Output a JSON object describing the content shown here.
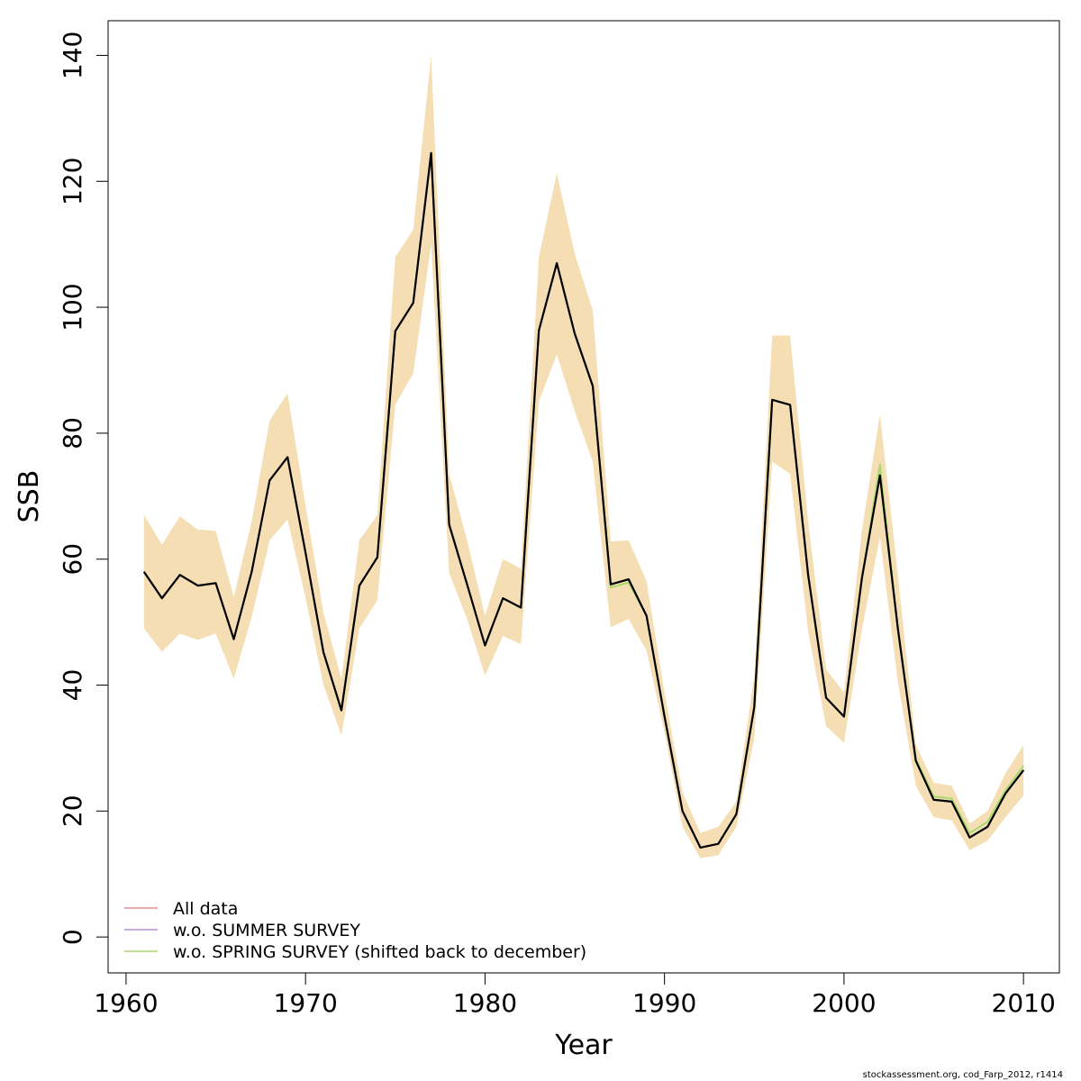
{
  "chart_data": {
    "type": "line",
    "xlabel": "Year",
    "ylabel": "SSB",
    "xlim": [
      1959,
      2012
    ],
    "ylim": [
      -5.7,
      145.5
    ],
    "xticks": [
      1960,
      1970,
      1980,
      1990,
      2000,
      2010
    ],
    "yticks": [
      0,
      20,
      40,
      60,
      80,
      100,
      120,
      140
    ],
    "x": [
      1961,
      1962,
      1963,
      1964,
      1965,
      1966,
      1967,
      1968,
      1969,
      1970,
      1971,
      1972,
      1973,
      1974,
      1975,
      1976,
      1977,
      1978,
      1979,
      1980,
      1981,
      1982,
      1983,
      1984,
      1985,
      1986,
      1987,
      1988,
      1989,
      1990,
      1991,
      1992,
      1993,
      1994,
      1995,
      1996,
      1997,
      1998,
      1999,
      2000,
      2001,
      2002,
      2003,
      2004,
      2005,
      2006,
      2007,
      2008,
      2009,
      2010
    ],
    "band": {
      "lower": [
        49.0,
        45.3,
        48.2,
        47.2,
        48.2,
        41.0,
        50.8,
        63.0,
        66.3,
        53.8,
        40.0,
        32.0,
        49.0,
        53.5,
        84.5,
        89.5,
        110.0,
        57.8,
        50.5,
        41.5,
        47.8,
        46.5,
        85.0,
        92.5,
        83.5,
        75.5,
        49.2,
        50.5,
        45.5,
        32.5,
        17.5,
        12.5,
        13.0,
        17.5,
        31.5,
        75.5,
        73.5,
        48.5,
        33.5,
        30.8,
        48.8,
        63.5,
        40.5,
        24.0,
        19.0,
        18.5,
        13.8,
        15.3,
        19.0,
        22.5
      ],
      "upper": [
        67.0,
        62.3,
        66.8,
        64.7,
        64.5,
        54.0,
        66.0,
        82.0,
        86.3,
        68.5,
        51.5,
        41.0,
        63.0,
        67.0,
        108.0,
        112.3,
        140.0,
        73.5,
        63.0,
        51.0,
        60.0,
        58.5,
        108.0,
        121.3,
        108.5,
        99.5,
        62.8,
        63.0,
        56.5,
        38.8,
        23.0,
        16.5,
        17.5,
        21.5,
        41.5,
        95.5,
        95.5,
        66.0,
        42.5,
        38.8,
        64.5,
        83.0,
        57.5,
        30.5,
        24.5,
        24.0,
        18.0,
        20.0,
        26.0,
        30.5
      ]
    },
    "series": [
      {
        "name": "All data",
        "color": "#e88e8e",
        "values": [
          58.0,
          53.8,
          57.5,
          55.8,
          56.2,
          47.3,
          58.0,
          72.5,
          76.2,
          61.0,
          45.2,
          36.0,
          55.8,
          60.3,
          96.2,
          100.7,
          124.5,
          65.5,
          56.0,
          46.3,
          53.8,
          52.3,
          96.3,
          107.0,
          95.8,
          87.5,
          56.0,
          56.8,
          51.0,
          35.0,
          20.0,
          14.2,
          14.8,
          19.5,
          36.5,
          85.3,
          84.5,
          57.5,
          38.0,
          35.0,
          57.0,
          73.3,
          49.0,
          28.0,
          21.8,
          21.5,
          15.8,
          17.5,
          22.8,
          26.5
        ]
      },
      {
        "name": "w.o. SUMMER SURVEY",
        "color": "#b68fcc",
        "values": [
          58.0,
          53.8,
          57.5,
          55.8,
          56.2,
          47.3,
          58.0,
          72.5,
          76.2,
          61.0,
          45.2,
          36.0,
          55.8,
          60.3,
          96.2,
          100.7,
          124.5,
          65.5,
          56.0,
          46.3,
          53.8,
          52.3,
          96.3,
          107.0,
          95.8,
          87.5,
          56.0,
          56.8,
          51.0,
          35.0,
          20.0,
          14.2,
          14.8,
          19.5,
          36.5,
          85.3,
          84.5,
          57.5,
          38.0,
          35.0,
          57.0,
          73.3,
          49.0,
          28.0,
          21.8,
          21.5,
          15.8,
          17.5,
          22.8,
          26.5
        ]
      },
      {
        "name": "w.o. SPRING SURVEY (shifted back to december)",
        "color": "#a8d86e",
        "values": [
          58.0,
          53.8,
          57.5,
          55.8,
          56.2,
          47.3,
          58.0,
          72.5,
          76.2,
          61.0,
          45.2,
          36.0,
          55.8,
          60.3,
          96.2,
          100.7,
          124.5,
          65.5,
          56.0,
          46.3,
          53.8,
          52.3,
          96.3,
          107.0,
          95.8,
          87.5,
          55.5,
          56.3,
          51.0,
          35.0,
          20.0,
          14.2,
          14.8,
          19.5,
          36.5,
          85.3,
          84.5,
          57.5,
          38.0,
          35.0,
          57.0,
          75.0,
          49.0,
          28.3,
          22.3,
          22.0,
          16.5,
          18.3,
          23.3,
          27.2
        ]
      },
      {
        "name": "",
        "color": "#000000",
        "values": [
          58.0,
          53.8,
          57.5,
          55.8,
          56.2,
          47.3,
          58.0,
          72.5,
          76.2,
          61.0,
          45.2,
          36.0,
          55.8,
          60.3,
          96.2,
          100.7,
          124.5,
          65.5,
          56.0,
          46.3,
          53.8,
          52.3,
          96.3,
          107.0,
          95.8,
          87.5,
          56.0,
          56.8,
          51.0,
          35.0,
          20.0,
          14.2,
          14.8,
          19.5,
          36.5,
          85.3,
          84.5,
          57.5,
          38.0,
          35.0,
          57.0,
          73.3,
          49.0,
          28.0,
          21.8,
          21.5,
          15.8,
          17.5,
          22.8,
          26.5
        ]
      }
    ],
    "band_color": "#f5deb3",
    "legend_position": "bottom-left",
    "legend_entries": [
      "All data",
      "w.o. SUMMER SURVEY",
      "w.o. SPRING SURVEY (shifted back to december)"
    ]
  },
  "credit": "stockassessment.org, cod_Farp_2012, r1414"
}
